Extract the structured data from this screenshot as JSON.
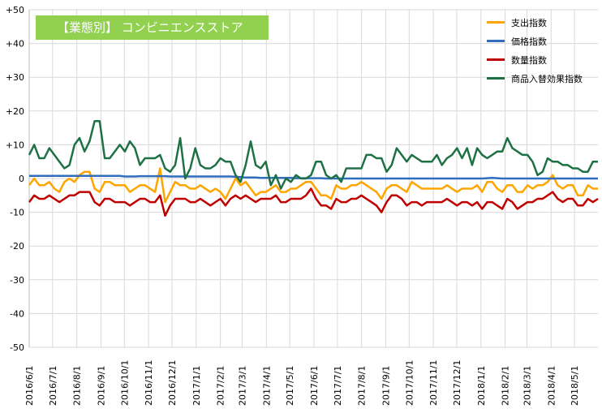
{
  "chart_data": {
    "type": "line",
    "title": "【業態別】 コンビニエンスストア",
    "ylim": [
      -50,
      50
    ],
    "y_ticks": [
      "+50",
      "+40",
      "+30",
      "+20",
      "+10",
      "0",
      "-10",
      "-20",
      "-30",
      "-40",
      "-50"
    ],
    "x_ticks": [
      "2016/6/1",
      "2016/7/1",
      "2016/8/1",
      "2016/9/1",
      "2016/10/1",
      "2016/11/1",
      "2016/12/1",
      "2017/1/1",
      "2017/2/1",
      "2017/3/1",
      "2017/4/1",
      "2017/5/1",
      "2017/6/1",
      "2017/7/1",
      "2017/8/1",
      "2017/9/1",
      "2017/10/1",
      "2017/11/1",
      "2017/12/1",
      "2018/1/1",
      "2018/2/1",
      "2018/3/1",
      "2018/4/1",
      "2018/5/1"
    ],
    "x_range": [
      "2016-06-01",
      "2018-05-31"
    ],
    "grid": true,
    "legend_position": "top-right",
    "series": [
      {
        "name": "支出指数",
        "color": "#ffa500",
        "values": [
          -2,
          0,
          -2,
          -2,
          -1,
          -3,
          -4,
          -1,
          0,
          -1,
          1,
          2,
          2,
          -3,
          -4,
          -1,
          -1,
          -2,
          -2,
          -2,
          -4,
          -3,
          -2,
          -2,
          -3,
          -4,
          3,
          -7,
          -4,
          -1,
          -2,
          -2,
          -3,
          -3,
          -2,
          -3,
          -4,
          -3,
          -4,
          -6,
          -3,
          0,
          -2,
          -1,
          -3,
          -5,
          -4,
          -4,
          -3,
          -2,
          -4,
          -4,
          -3,
          -3,
          -2,
          -1,
          -1,
          -3,
          -5,
          -5,
          -6,
          -2,
          -3,
          -3,
          -2,
          -2,
          -1,
          -2,
          -3,
          -4,
          -6,
          -3,
          -2,
          -2,
          -3,
          -4,
          -1,
          -2,
          -3,
          -3,
          -3,
          -3,
          -3,
          -2,
          -3,
          -4,
          -3,
          -3,
          -3,
          -2,
          -4,
          -1,
          -1,
          -3,
          -4,
          -2,
          -2,
          -4,
          -4,
          -2,
          -3,
          -2,
          -2,
          -1,
          1,
          -2,
          -3,
          -2,
          -2,
          -5,
          -5,
          -2,
          -3,
          -3
        ],
        "note": ""
      },
      {
        "name": "価格指数",
        "color": "#2e6ebd",
        "values": [
          0.8,
          0.8,
          0.8,
          0.8,
          0.8,
          0.8,
          0.8,
          0.8,
          0.8,
          0.8,
          0.8,
          0.8,
          0.8,
          0.8,
          0.8,
          0.8,
          0.8,
          0.8,
          0.8,
          0.6,
          0.6,
          0.6,
          0.7,
          0.7,
          0.7,
          0.7,
          0.7,
          0.7,
          0.6,
          0.6,
          0.6,
          0.6,
          0.6,
          0.6,
          0.6,
          0.6,
          0.6,
          0.6,
          0.6,
          0.6,
          0.6,
          0.5,
          0.4,
          0.3,
          0.3,
          0.3,
          0.2,
          0.2,
          0.2,
          0.2,
          0.2,
          0.2,
          0.2,
          0.1,
          0.1,
          0.1,
          0.1,
          0.1,
          0.1,
          0,
          0,
          0,
          0,
          0,
          0,
          0,
          0,
          0,
          0,
          0,
          0,
          0,
          0,
          0,
          0,
          0,
          0,
          0,
          0,
          0,
          0,
          0,
          0,
          0,
          0,
          0,
          0,
          0,
          0,
          0,
          0,
          0.1,
          0.2,
          0.1,
          0,
          0,
          0,
          0,
          0,
          0,
          0,
          0,
          0,
          0,
          0,
          0,
          0,
          0,
          0,
          0,
          0,
          0,
          0,
          0
        ]
      },
      {
        "name": "数量指数",
        "color": "#c00000",
        "values": [
          -7,
          -5,
          -6,
          -6,
          -5,
          -6,
          -7,
          -6,
          -5,
          -5,
          -4,
          -4,
          -4,
          -7,
          -8,
          -6,
          -6,
          -7,
          -7,
          -7,
          -8,
          -7,
          -6,
          -6,
          -7,
          -7,
          -5,
          -11,
          -8,
          -6,
          -6,
          -6,
          -7,
          -7,
          -6,
          -7,
          -8,
          -7,
          -6,
          -8,
          -6,
          -5,
          -6,
          -5,
          -6,
          -7,
          -6,
          -6,
          -6,
          -5,
          -7,
          -7,
          -6,
          -6,
          -6,
          -5,
          -3,
          -6,
          -8,
          -8,
          -9,
          -6,
          -7,
          -7,
          -6,
          -6,
          -5,
          -6,
          -7,
          -8,
          -10,
          -7,
          -5,
          -5,
          -6,
          -8,
          -7,
          -7,
          -8,
          -7,
          -7,
          -7,
          -7,
          -6,
          -7,
          -8,
          -7,
          -7,
          -8,
          -7,
          -9,
          -7,
          -7,
          -8,
          -9,
          -6,
          -7,
          -9,
          -8,
          -7,
          -7,
          -6,
          -6,
          -5,
          -4,
          -6,
          -7,
          -6,
          -6,
          -8,
          -8,
          -6,
          -7,
          -6
        ]
      },
      {
        "name": "商品入替効果指数",
        "color": "#1e7145",
        "values": [
          7,
          10,
          6,
          6,
          9,
          7,
          5,
          3,
          4,
          10,
          12,
          8,
          11,
          17,
          17,
          6,
          6,
          8,
          10,
          8,
          11,
          9,
          4,
          6,
          6,
          6,
          7,
          3,
          2,
          4,
          12,
          0,
          3,
          9,
          4,
          3,
          3,
          4,
          6,
          5,
          5,
          1,
          -1,
          4,
          11,
          4,
          3,
          5,
          -2,
          1,
          -3,
          0,
          -1,
          1,
          0,
          0,
          1,
          5,
          5,
          1,
          0,
          1,
          -1,
          3,
          3,
          3,
          3,
          7,
          7,
          6,
          6,
          2,
          4,
          9,
          7,
          5,
          7,
          6,
          5,
          5,
          5,
          7,
          4,
          6,
          7,
          9,
          6,
          9,
          4,
          9,
          7,
          6,
          7,
          8,
          8,
          12,
          9,
          8,
          7,
          7,
          5,
          1,
          2,
          6,
          5,
          5,
          4,
          4,
          3,
          3,
          2,
          2,
          5,
          5
        ],
        "note": ""
      }
    ]
  }
}
